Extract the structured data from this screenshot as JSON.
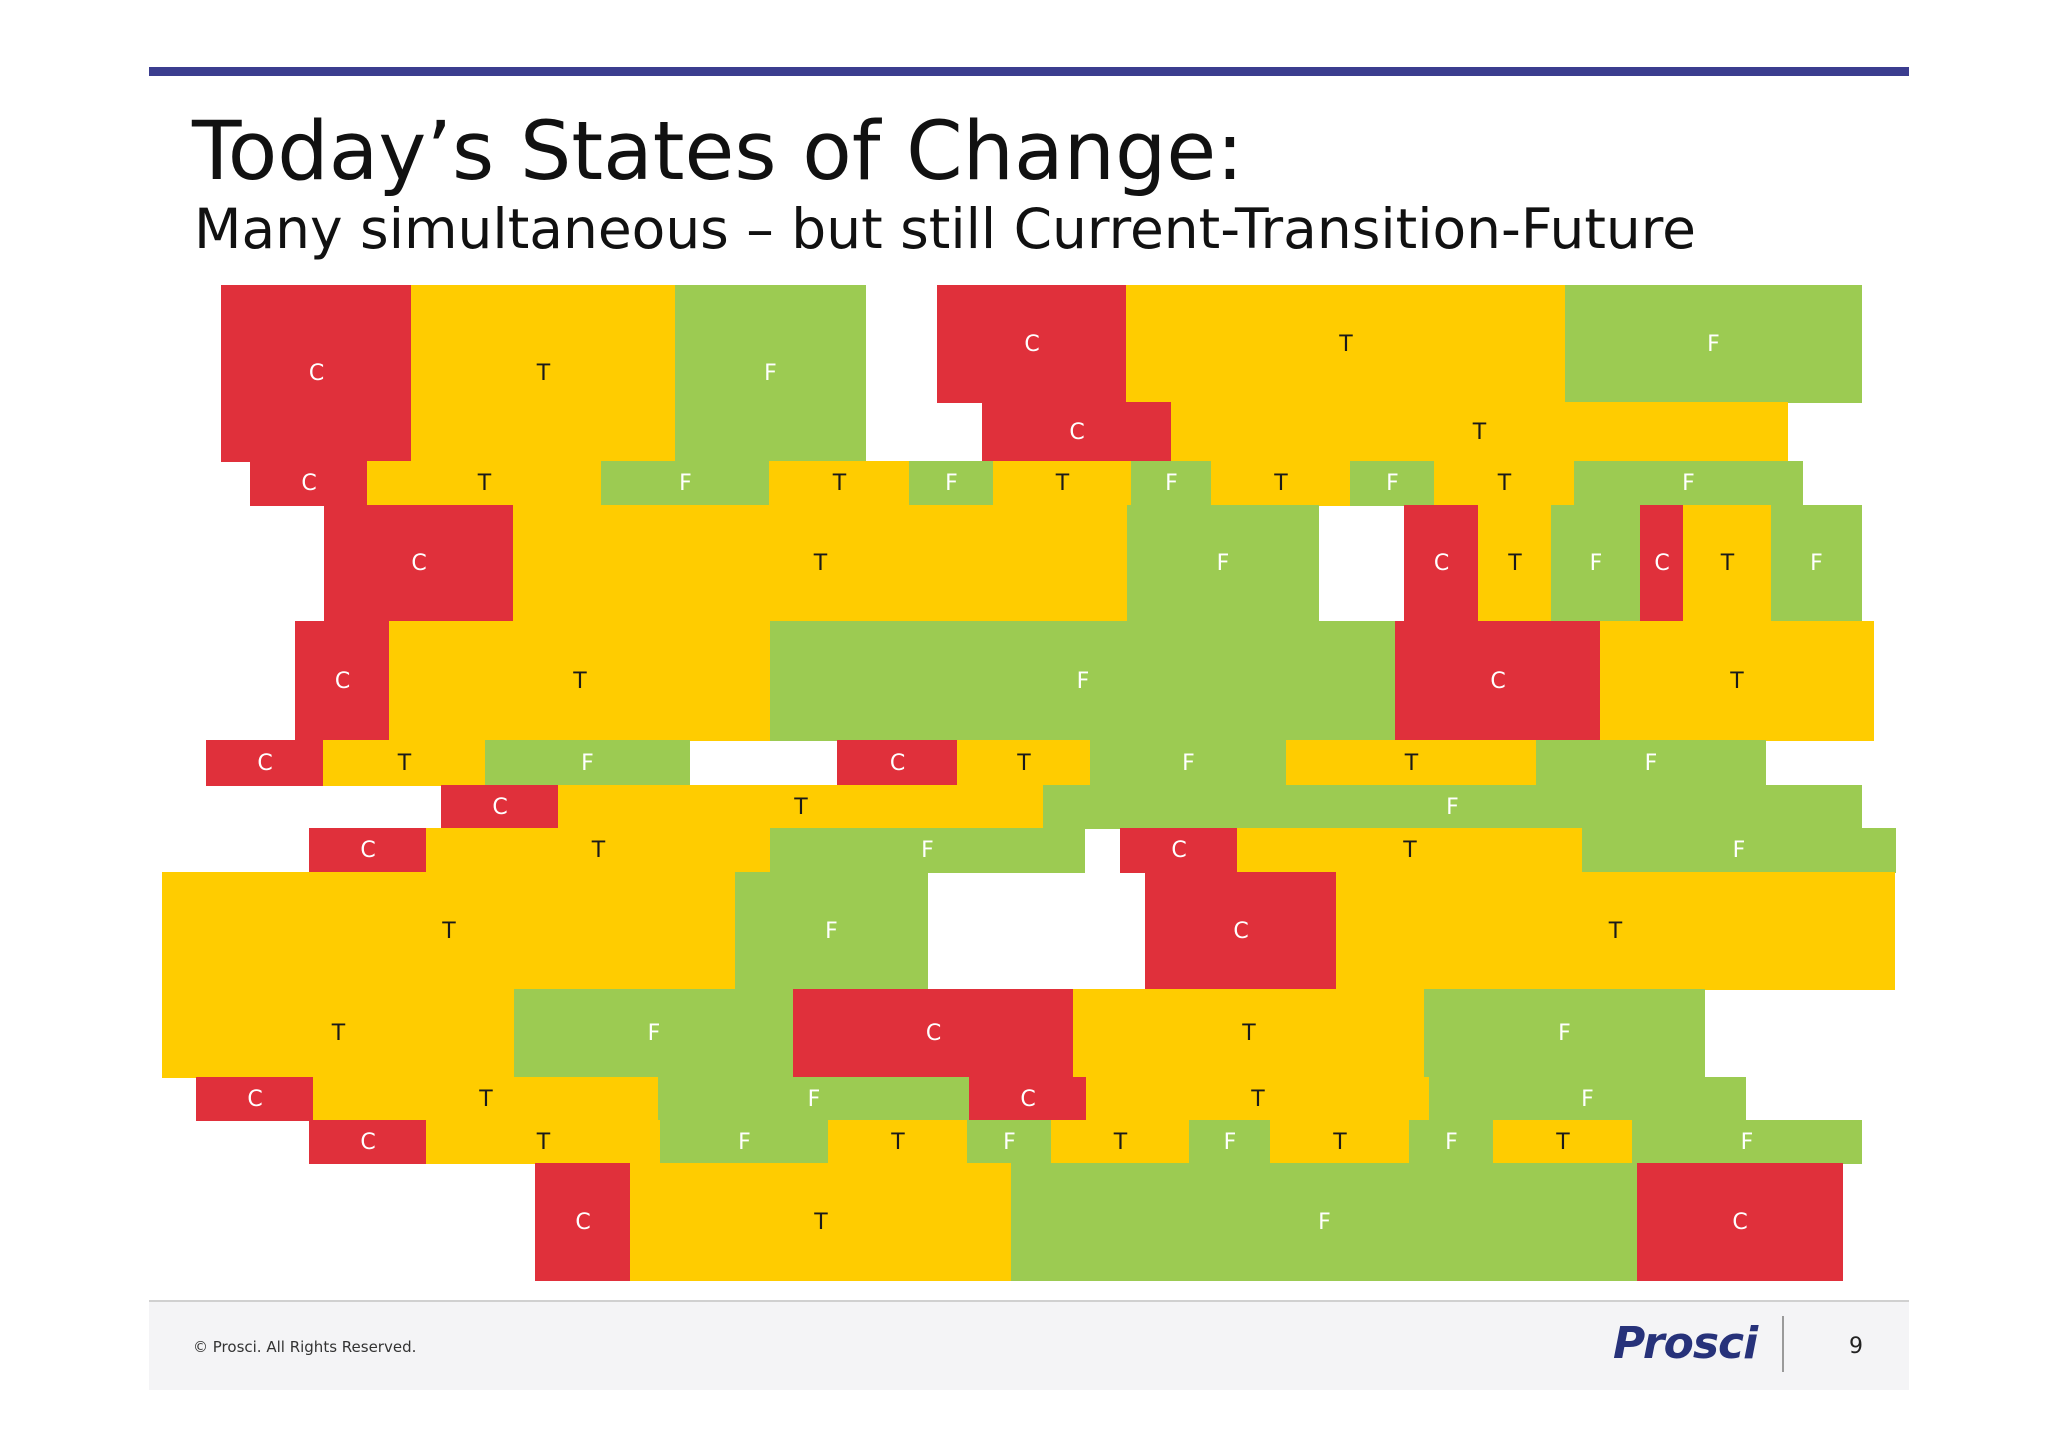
{
  "slide": {
    "title": "Today’s States of Change:",
    "subtitle": "Many simultaneous – but still Current-Transition-Future",
    "colors": {
      "C": "#e0303b",
      "T": "#ffcc00",
      "F": "#9ccb52",
      "header_rule": "#3b3d8f",
      "logo": "#27327a"
    }
  },
  "blocks": {
    "r1": [
      "C",
      "T",
      "F",
      "C",
      "T",
      "F"
    ],
    "r2": [
      "C",
      "T"
    ],
    "r3": [
      "C",
      "T",
      "F",
      "T",
      "F",
      "T",
      "F",
      "T",
      "F",
      "T",
      "F"
    ],
    "r4": [
      "C",
      "T",
      "F",
      "C",
      "T",
      "F",
      "C",
      "T",
      "F"
    ],
    "r5": [
      "C",
      "T",
      "F",
      "C",
      "T"
    ],
    "r6": [
      "C",
      "T",
      "F",
      "C",
      "T",
      "F",
      "T",
      "F"
    ],
    "r7": [
      "C",
      "T",
      "F"
    ],
    "r8": [
      "C",
      "T",
      "F",
      "C",
      "T",
      "F"
    ],
    "r9": [
      "T",
      "F",
      "C",
      "T"
    ],
    "r10": [
      "T",
      "F",
      "C",
      "T",
      "F"
    ],
    "r11": [
      "C",
      "T",
      "F",
      "C",
      "T",
      "F"
    ],
    "r12": [
      "C",
      "T",
      "F",
      "T",
      "F",
      "T",
      "F",
      "T",
      "F",
      "T",
      "F"
    ],
    "r13": [
      "C",
      "T",
      "F",
      "C"
    ]
  },
  "footer": {
    "copyright": "© Prosci. All Rights Reserved.",
    "logo_text": "Prosci",
    "page_number": "9"
  }
}
